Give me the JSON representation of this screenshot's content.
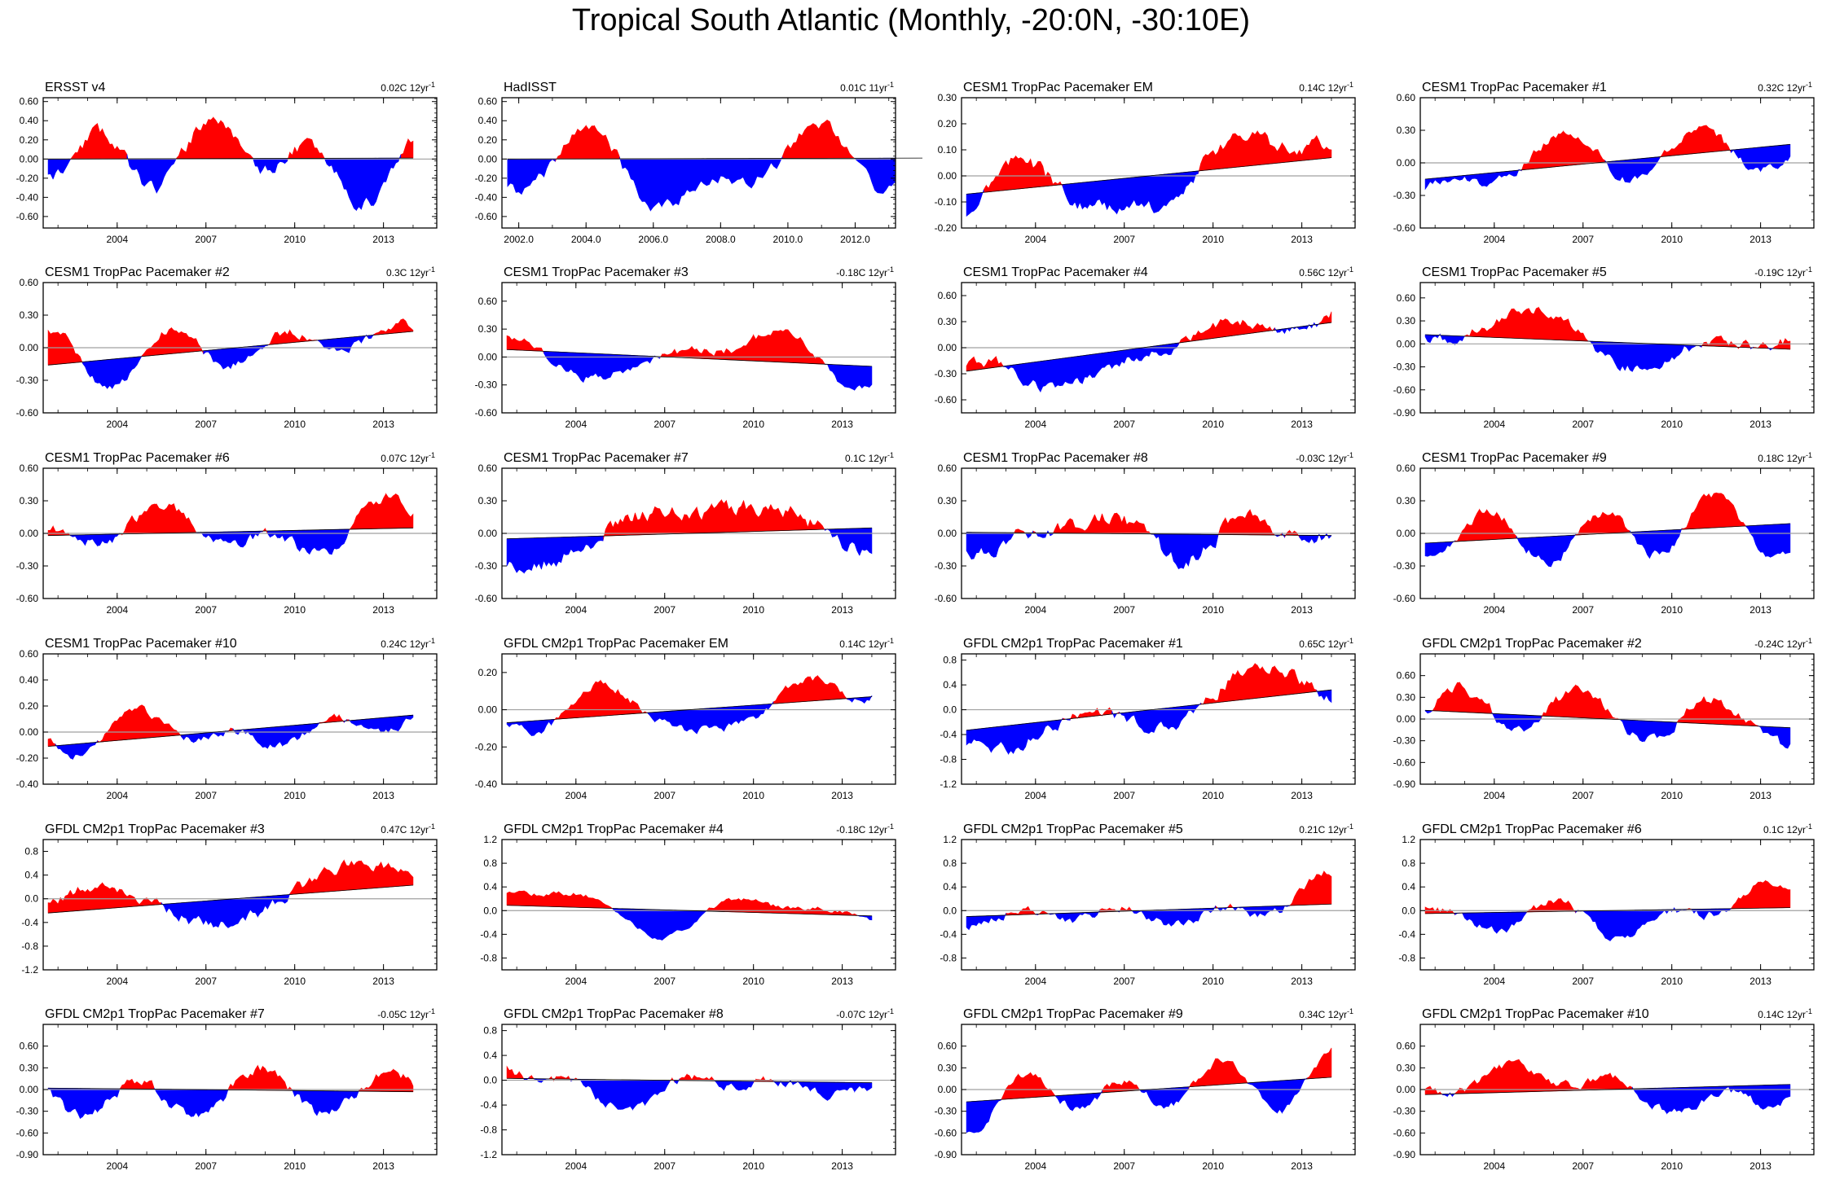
{
  "title": "Tropical South Atlantic (Monthly, -20:0N, -30:10E)",
  "colors": {
    "positive": "#ff0000",
    "negative": "#0000ff",
    "zero_line": "#a0a0a0",
    "trend": "#000000",
    "axis": "#000000"
  },
  "chart_data": [
    {
      "type": "area",
      "title": "ERSST v4",
      "trend_label": "0.02C 12yr",
      "trend_sup": "-1",
      "yticks": [
        "0.60",
        "0.40",
        "0.20",
        "0.00",
        "-0.20",
        "-0.40",
        "-0.60"
      ],
      "ylim": [
        -0.72,
        0.64
      ],
      "xticks": [
        "2004",
        "2007",
        "2010",
        "2013"
      ],
      "xrange": [
        2001.5,
        2014.8
      ],
      "trend": [
        0.0,
        0.01
      ],
      "seed": 11,
      "amp": 0.34
    },
    {
      "type": "area",
      "title": "HadISST",
      "trend_label": "0.01C 11yr",
      "trend_sup": "-1",
      "yticks": [
        "0.60",
        "0.40",
        "0.20",
        "0.00",
        "-0.20",
        "-0.40",
        "-0.60"
      ],
      "ylim": [
        -0.72,
        0.64
      ],
      "xticks": [
        "2002.0",
        "2004.0",
        "2006.0",
        "2008.0",
        "2010.0",
        "2012.0"
      ],
      "xrange": [
        2001.5,
        2013.2
      ],
      "trend": [
        0.0,
        0.01
      ],
      "seed": 12,
      "amp": 0.34
    },
    {
      "type": "area",
      "title": "CESM1 TropPac Pacemaker EM",
      "trend_label": "0.14C 12yr",
      "trend_sup": "-1",
      "yticks": [
        "0.30",
        "0.20",
        "0.10",
        "0.00",
        "-0.10",
        "-0.20"
      ],
      "ylim": [
        -0.2,
        0.3
      ],
      "xticks": [
        "2004",
        "2007",
        "2010",
        "2013"
      ],
      "xrange": [
        2001.5,
        2014.8
      ],
      "trend": [
        -0.07,
        0.07
      ],
      "seed": 13,
      "amp": 0.09
    },
    {
      "type": "area",
      "title": "CESM1 TropPac Pacemaker #1",
      "trend_label": "0.32C 12yr",
      "trend_sup": "-1",
      "yticks": [
        "0.60",
        "0.30",
        "0.00",
        "-0.30",
        "-0.60"
      ],
      "ylim": [
        -0.6,
        0.6
      ],
      "xticks": [
        "2004",
        "2007",
        "2010",
        "2013"
      ],
      "xrange": [
        2001.5,
        2014.8
      ],
      "trend": [
        -0.15,
        0.17
      ],
      "seed": 14,
      "amp": 0.2
    },
    {
      "type": "area",
      "title": "CESM1 TropPac Pacemaker #2",
      "trend_label": "0.3C 12yr",
      "trend_sup": "-1",
      "yticks": [
        "0.60",
        "0.30",
        "0.00",
        "-0.30",
        "-0.60"
      ],
      "ylim": [
        -0.6,
        0.6
      ],
      "xticks": [
        "2004",
        "2007",
        "2010",
        "2013"
      ],
      "xrange": [
        2001.5,
        2014.8
      ],
      "trend": [
        -0.16,
        0.15
      ],
      "seed": 15,
      "amp": 0.2
    },
    {
      "type": "area",
      "title": "CESM1 TropPac Pacemaker #3",
      "trend_label": "-0.18C 12yr",
      "trend_sup": "-1",
      "yticks": [
        "0.60",
        "0.30",
        "0.00",
        "-0.30",
        "-0.60"
      ],
      "ylim": [
        -0.6,
        0.8
      ],
      "xticks": [
        "2004",
        "2007",
        "2010",
        "2013"
      ],
      "xrange": [
        2001.5,
        2014.8
      ],
      "trend": [
        0.08,
        -0.1
      ],
      "seed": 16,
      "amp": 0.22
    },
    {
      "type": "area",
      "title": "CESM1 TropPac Pacemaker #4",
      "trend_label": "0.56C 12yr",
      "trend_sup": "-1",
      "yticks": [
        "0.60",
        "0.30",
        "0.00",
        "-0.30",
        "-0.60"
      ],
      "ylim": [
        -0.75,
        0.75
      ],
      "xticks": [
        "2004",
        "2007",
        "2010",
        "2013"
      ],
      "xrange": [
        2001.5,
        2014.8
      ],
      "trend": [
        -0.27,
        0.29
      ],
      "seed": 17,
      "amp": 0.22
    },
    {
      "type": "area",
      "title": "CESM1 TropPac Pacemaker #5",
      "trend_label": "-0.19C 12yr",
      "trend_sup": "-1",
      "yticks": [
        "0.60",
        "0.30",
        "0.00",
        "-0.30",
        "-0.60",
        "-0.90"
      ],
      "ylim": [
        -0.9,
        0.8
      ],
      "xticks": [
        "2004",
        "2007",
        "2010",
        "2013"
      ],
      "xrange": [
        2001.5,
        2014.8
      ],
      "trend": [
        0.12,
        -0.07
      ],
      "seed": 18,
      "amp": 0.26
    },
    {
      "type": "area",
      "title": "CESM1 TropPac Pacemaker #6",
      "trend_label": "0.07C 12yr",
      "trend_sup": "-1",
      "yticks": [
        "0.60",
        "0.30",
        "0.00",
        "-0.30",
        "-0.60"
      ],
      "ylim": [
        -0.6,
        0.6
      ],
      "xticks": [
        "2004",
        "2007",
        "2010",
        "2013"
      ],
      "xrange": [
        2001.5,
        2014.8
      ],
      "trend": [
        -0.02,
        0.05
      ],
      "seed": 19,
      "amp": 0.2
    },
    {
      "type": "area",
      "title": "CESM1 TropPac Pacemaker #7",
      "trend_label": "0.1C 12yr",
      "trend_sup": "-1",
      "yticks": [
        "0.60",
        "0.30",
        "0.00",
        "-0.30",
        "-0.60"
      ],
      "ylim": [
        -0.6,
        0.6
      ],
      "xticks": [
        "2004",
        "2007",
        "2010",
        "2013"
      ],
      "xrange": [
        2001.5,
        2014.8
      ],
      "trend": [
        -0.05,
        0.05
      ],
      "seed": 20,
      "amp": 0.2
    },
    {
      "type": "area",
      "title": "CESM1 TropPac Pacemaker #8",
      "trend_label": "-0.03C 12yr",
      "trend_sup": "-1",
      "yticks": [
        "0.60",
        "0.30",
        "0.00",
        "-0.30",
        "-0.60"
      ],
      "ylim": [
        -0.6,
        0.6
      ],
      "xticks": [
        "2004",
        "2007",
        "2010",
        "2013"
      ],
      "xrange": [
        2001.5,
        2014.8
      ],
      "trend": [
        0.01,
        -0.02
      ],
      "seed": 21,
      "amp": 0.2
    },
    {
      "type": "area",
      "title": "CESM1 TropPac Pacemaker #9",
      "trend_label": "0.18C 12yr",
      "trend_sup": "-1",
      "yticks": [
        "0.60",
        "0.30",
        "0.00",
        "-0.30",
        "-0.60"
      ],
      "ylim": [
        -0.6,
        0.6
      ],
      "xticks": [
        "2004",
        "2007",
        "2010",
        "2013"
      ],
      "xrange": [
        2001.5,
        2014.8
      ],
      "trend": [
        -0.09,
        0.09
      ],
      "seed": 22,
      "amp": 0.2
    },
    {
      "type": "area",
      "title": "CESM1 TropPac Pacemaker #10",
      "trend_label": "0.24C 12yr",
      "trend_sup": "-1",
      "yticks": [
        "0.60",
        "0.40",
        "0.20",
        "0.00",
        "-0.20",
        "-0.40"
      ],
      "ylim": [
        -0.4,
        0.6
      ],
      "xticks": [
        "2004",
        "2007",
        "2010",
        "2013"
      ],
      "xrange": [
        2001.5,
        2014.8
      ],
      "trend": [
        -0.11,
        0.13
      ],
      "seed": 23,
      "amp": 0.16
    },
    {
      "type": "area",
      "title": "GFDL CM2p1 TropPac Pacemaker EM",
      "trend_label": "0.14C 12yr",
      "trend_sup": "-1",
      "yticks": [
        "0.20",
        "0.00",
        "-0.20",
        "-0.40"
      ],
      "ylim": [
        -0.4,
        0.3
      ],
      "xticks": [
        "2004",
        "2007",
        "2010",
        "2013"
      ],
      "xrange": [
        2001.5,
        2014.8
      ],
      "trend": [
        -0.07,
        0.07
      ],
      "seed": 24,
      "amp": 0.12
    },
    {
      "type": "area",
      "title": "GFDL CM2p1 TropPac Pacemaker #1",
      "trend_label": "0.65C 12yr",
      "trend_sup": "-1",
      "yticks": [
        "0.8",
        "0.4",
        "0.0",
        "-0.4",
        "-0.8",
        "-1.2"
      ],
      "ylim": [
        -1.2,
        0.9
      ],
      "xticks": [
        "2004",
        "2007",
        "2010",
        "2013"
      ],
      "xrange": [
        2001.5,
        2014.8
      ],
      "trend": [
        -0.33,
        0.32
      ],
      "seed": 25,
      "amp": 0.35
    },
    {
      "type": "area",
      "title": "GFDL CM2p1 TropPac Pacemaker #2",
      "trend_label": "-0.24C 12yr",
      "trend_sup": "-1",
      "yticks": [
        "0.60",
        "0.30",
        "0.00",
        "-0.30",
        "-0.60",
        "-0.90"
      ],
      "ylim": [
        -0.9,
        0.9
      ],
      "xticks": [
        "2004",
        "2007",
        "2010",
        "2013"
      ],
      "xrange": [
        2001.5,
        2014.8
      ],
      "trend": [
        0.12,
        -0.12
      ],
      "seed": 26,
      "amp": 0.28
    },
    {
      "type": "area",
      "title": "GFDL CM2p1 TropPac Pacemaker #3",
      "trend_label": "0.47C 12yr",
      "trend_sup": "-1",
      "yticks": [
        "0.8",
        "0.4",
        "0.0",
        "-0.4",
        "-0.8",
        "-1.2"
      ],
      "ylim": [
        -1.2,
        1.0
      ],
      "xticks": [
        "2004",
        "2007",
        "2010",
        "2013"
      ],
      "xrange": [
        2001.5,
        2014.8
      ],
      "trend": [
        -0.24,
        0.23
      ],
      "seed": 27,
      "amp": 0.32
    },
    {
      "type": "area",
      "title": "GFDL CM2p1 TropPac Pacemaker #4",
      "trend_label": "-0.18C 12yr",
      "trend_sup": "-1",
      "yticks": [
        "1.2",
        "0.8",
        "0.4",
        "0.0",
        "-0.4",
        "-0.8"
      ],
      "ylim": [
        -1.0,
        1.2
      ],
      "xticks": [
        "2004",
        "2007",
        "2010",
        "2013"
      ],
      "xrange": [
        2001.5,
        2014.8
      ],
      "trend": [
        0.09,
        -0.09
      ],
      "seed": 28,
      "amp": 0.32
    },
    {
      "type": "area",
      "title": "GFDL CM2p1 TropPac Pacemaker #5",
      "trend_label": "0.21C 12yr",
      "trend_sup": "-1",
      "yticks": [
        "1.2",
        "0.8",
        "0.4",
        "0.0",
        "-0.4",
        "-0.8"
      ],
      "ylim": [
        -1.0,
        1.2
      ],
      "xticks": [
        "2004",
        "2007",
        "2010",
        "2013"
      ],
      "xrange": [
        2001.5,
        2014.8
      ],
      "trend": [
        -0.1,
        0.11
      ],
      "seed": 29,
      "amp": 0.35
    },
    {
      "type": "area",
      "title": "GFDL CM2p1 TropPac Pacemaker #6",
      "trend_label": "0.1C 12yr",
      "trend_sup": "-1",
      "yticks": [
        "1.2",
        "0.8",
        "0.4",
        "0.0",
        "-0.4",
        "-0.8"
      ],
      "ylim": [
        -1.0,
        1.2
      ],
      "xticks": [
        "2004",
        "2007",
        "2010",
        "2013"
      ],
      "xrange": [
        2001.5,
        2014.8
      ],
      "trend": [
        -0.05,
        0.05
      ],
      "seed": 30,
      "amp": 0.32
    },
    {
      "type": "area",
      "title": "GFDL CM2p1 TropPac Pacemaker #7",
      "trend_label": "-0.05C 12yr",
      "trend_sup": "-1",
      "yticks": [
        "0.60",
        "0.30",
        "0.00",
        "-0.30",
        "-0.60",
        "-0.90"
      ],
      "ylim": [
        -0.9,
        0.9
      ],
      "xticks": [
        "2004",
        "2007",
        "2010",
        "2013"
      ],
      "xrange": [
        2001.5,
        2014.8
      ],
      "trend": [
        0.02,
        -0.03
      ],
      "seed": 31,
      "amp": 0.26
    },
    {
      "type": "area",
      "title": "GFDL CM2p1 TropPac Pacemaker #8",
      "trend_label": "-0.07C 12yr",
      "trend_sup": "-1",
      "yticks": [
        "0.8",
        "0.4",
        "0.0",
        "-0.4",
        "-0.8",
        "-1.2"
      ],
      "ylim": [
        -1.2,
        0.9
      ],
      "xticks": [
        "2004",
        "2007",
        "2010",
        "2013"
      ],
      "xrange": [
        2001.5,
        2014.8
      ],
      "trend": [
        0.03,
        -0.04
      ],
      "seed": 32,
      "amp": 0.3
    },
    {
      "type": "area",
      "title": "GFDL CM2p1 TropPac Pacemaker #9",
      "trend_label": "0.34C 12yr",
      "trend_sup": "-1",
      "yticks": [
        "0.60",
        "0.30",
        "0.00",
        "-0.30",
        "-0.60",
        "-0.90"
      ],
      "ylim": [
        -0.9,
        0.9
      ],
      "xticks": [
        "2004",
        "2007",
        "2010",
        "2013"
      ],
      "xrange": [
        2001.5,
        2014.8
      ],
      "trend": [
        -0.17,
        0.17
      ],
      "seed": 33,
      "amp": 0.28
    },
    {
      "type": "area",
      "title": "GFDL CM2p1 TropPac Pacemaker #10",
      "trend_label": "0.14C 12yr",
      "trend_sup": "-1",
      "yticks": [
        "0.60",
        "0.30",
        "0.00",
        "-0.30",
        "-0.60",
        "-0.90"
      ],
      "ylim": [
        -0.9,
        0.9
      ],
      "xticks": [
        "2004",
        "2007",
        "2010",
        "2013"
      ],
      "xrange": [
        2001.5,
        2014.8
      ],
      "trend": [
        -0.07,
        0.07
      ],
      "seed": 34,
      "amp": 0.28
    }
  ]
}
